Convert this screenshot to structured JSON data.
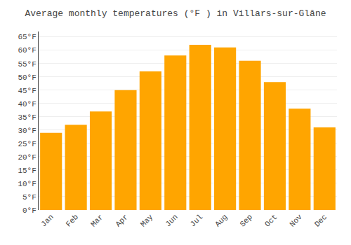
{
  "chart_data": {
    "type": "bar",
    "title": "Average monthly temperatures (°F ) in Villars-sur-Glâne",
    "categories": [
      "Jan",
      "Feb",
      "Mar",
      "Apr",
      "May",
      "Jun",
      "Jul",
      "Aug",
      "Sep",
      "Oct",
      "Nov",
      "Dec"
    ],
    "values": [
      29,
      32,
      37,
      45,
      52,
      58,
      62,
      61,
      56,
      48,
      38,
      31
    ],
    "color": "#FFA500",
    "ylim": [
      0,
      67
    ],
    "yticks": [
      {
        "value": 0,
        "label": "0°F"
      },
      {
        "value": 5,
        "label": "5°F"
      },
      {
        "value": 10,
        "label": "10°F"
      },
      {
        "value": 15,
        "label": "15°F"
      },
      {
        "value": 20,
        "label": "20°F"
      },
      {
        "value": 25,
        "label": "25°F"
      },
      {
        "value": 30,
        "label": "30°F"
      },
      {
        "value": 35,
        "label": "35°F"
      },
      {
        "value": 40,
        "label": "40°F"
      },
      {
        "value": 45,
        "label": "45°F"
      },
      {
        "value": 50,
        "label": "50°F"
      },
      {
        "value": 55,
        "label": "55°F"
      },
      {
        "value": 60,
        "label": "60°F"
      },
      {
        "value": 65,
        "label": "65°F"
      }
    ],
    "grid": true
  }
}
